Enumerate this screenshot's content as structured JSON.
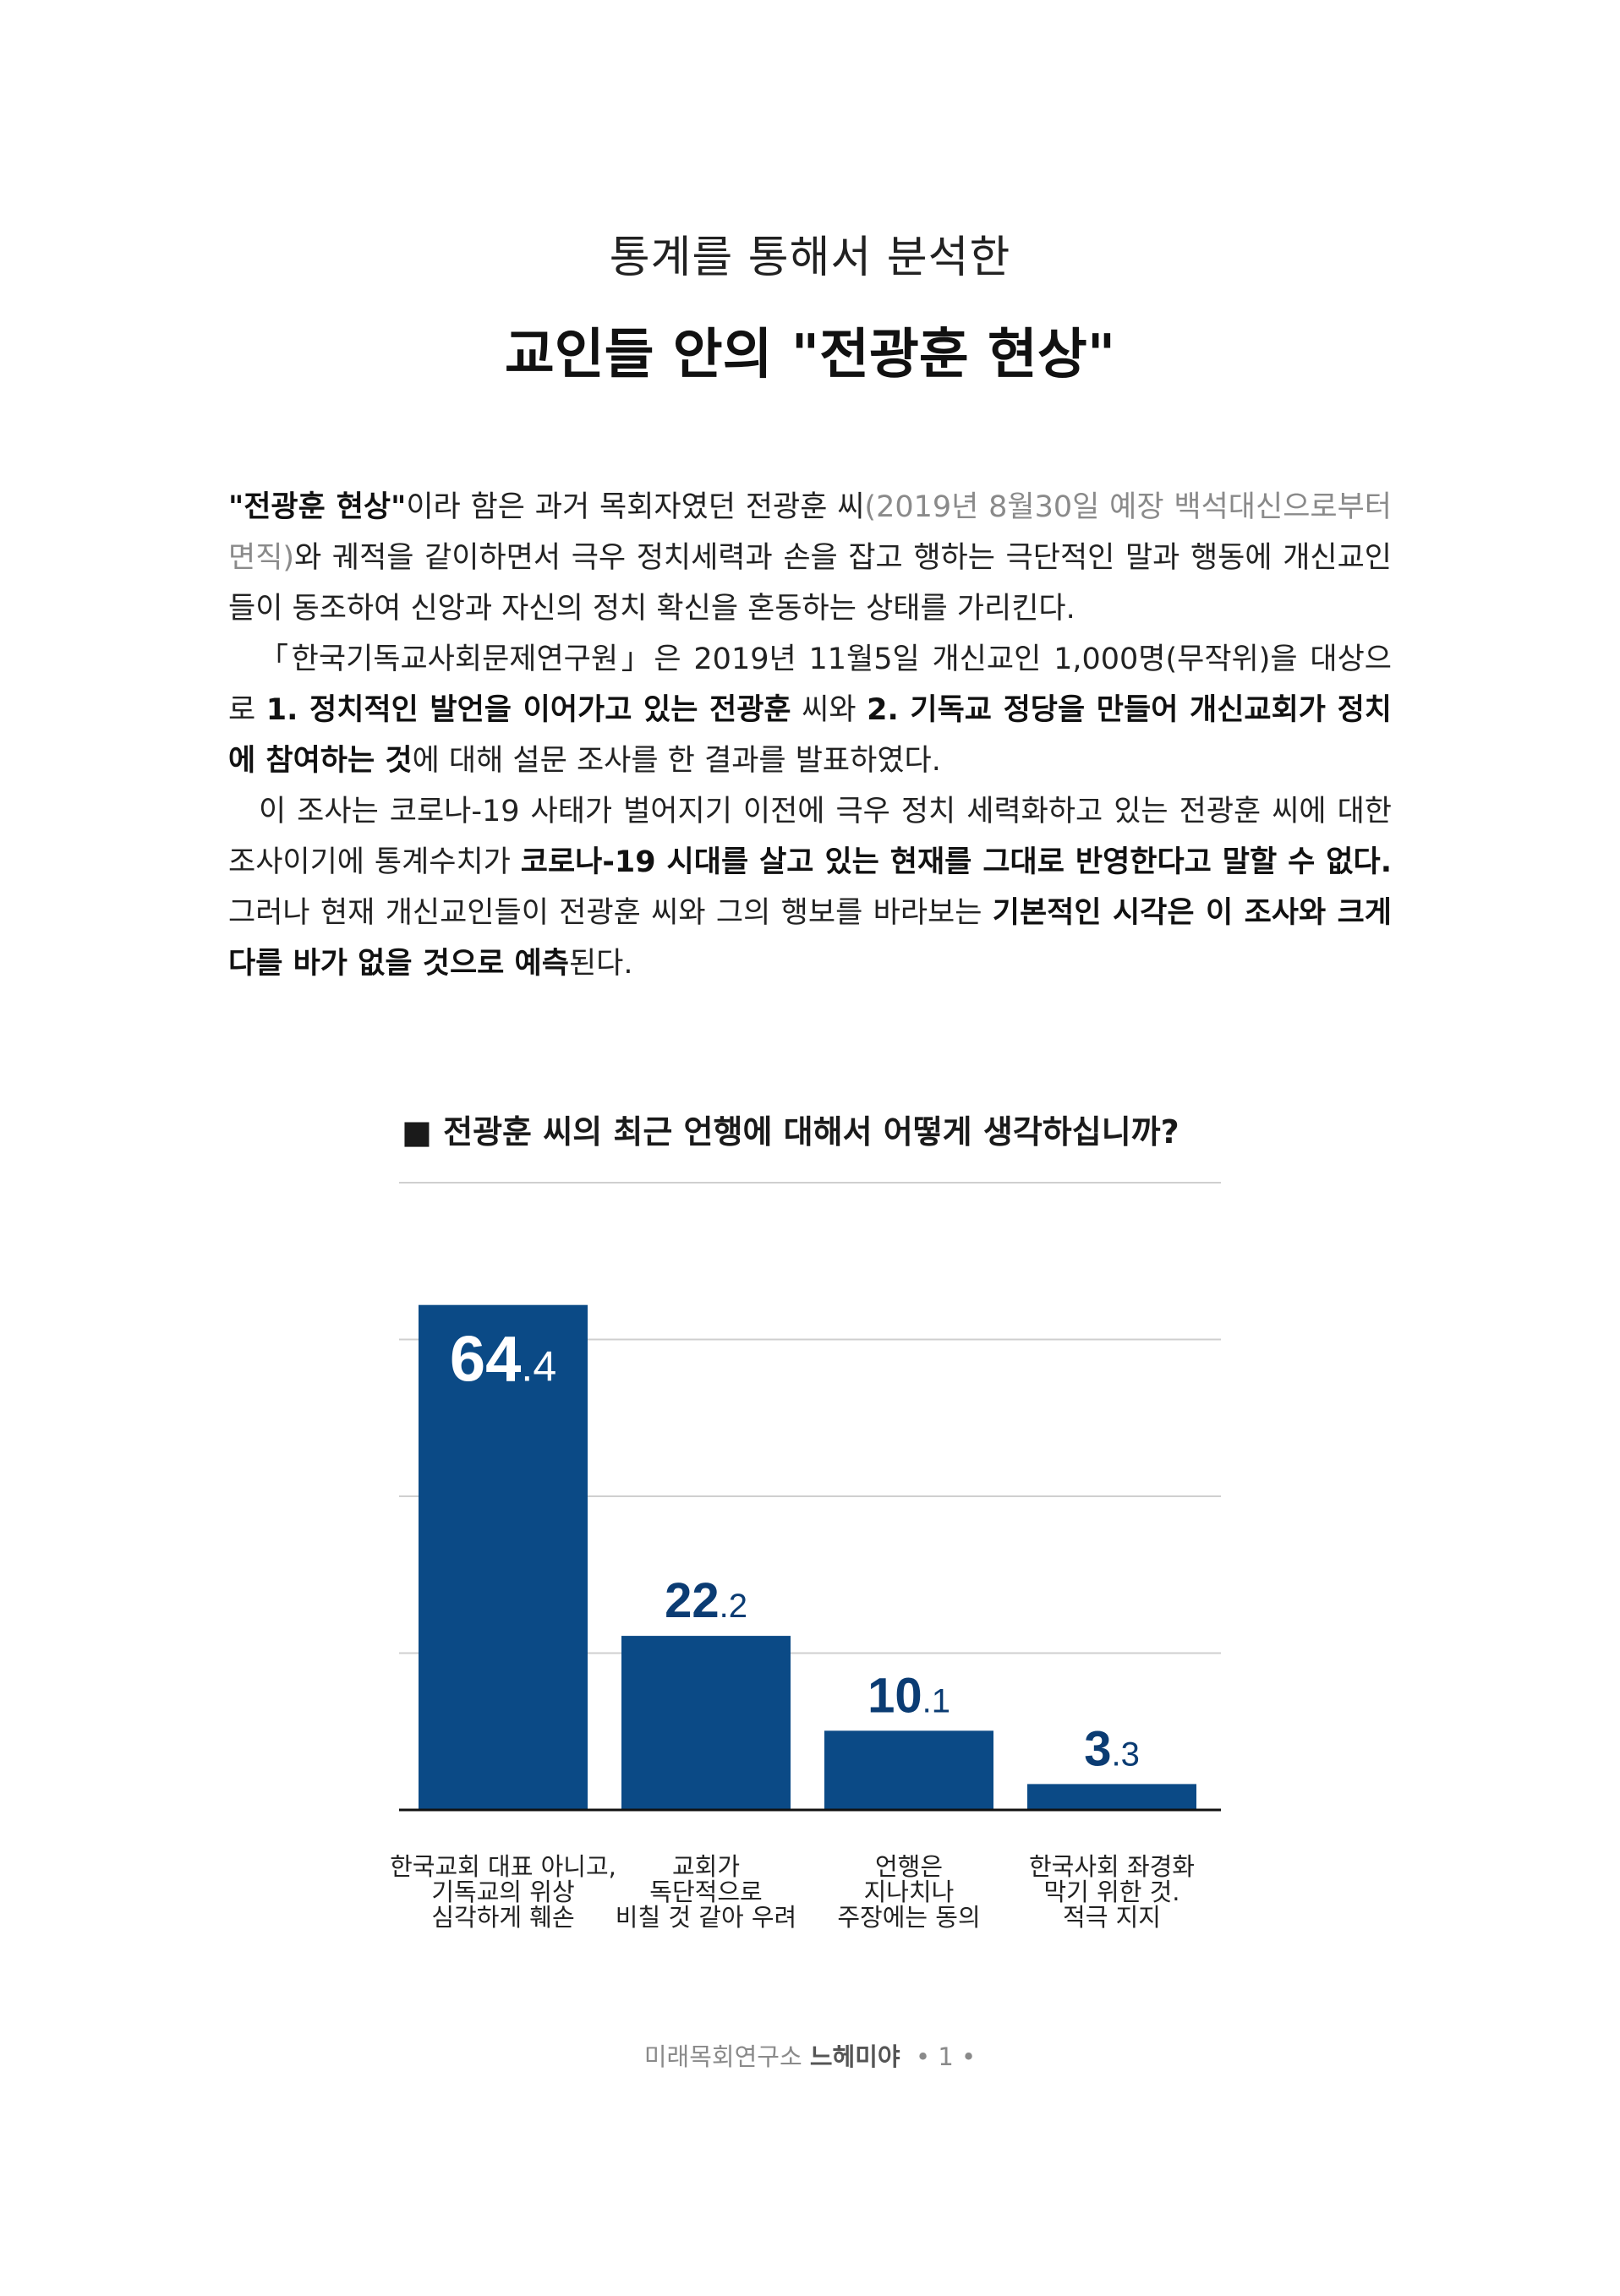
{
  "header": {
    "subtitle": "통계를 통해서 분석한",
    "title": "교인들 안의 \"전광훈 현상\""
  },
  "body": {
    "p1": {
      "b1": "\"전광훈 현상\"",
      "t1": "이라 함은 과거 목회자였던 전광훈 씨",
      "muted": "(2019년 8월30일 예장 백석대신으로부터 면직)",
      "t2": "와 궤적을 같이하면서 극우 정치세력과 손을 잡고 행하는 극단적인 말과 행동에 개신교인들이 동조하여 신앙과 자신의 정치 확신을 혼동하는 상태를 가리킨다."
    },
    "p2": {
      "t1": "「한국기독교사회문제연구원」은 2019년 11월5일 개신교인 1,000명(무작위)을 대상으로 ",
      "b1": "1. 정치적인 발언을 이어가고 있는 전광훈",
      "t2": " 씨와 ",
      "b2": "2. 기독교 정당을 만들어 개신교회가 정치에 참여하는 것",
      "t3": "에 대해 설문 조사를 한 결과를 발표하였다."
    },
    "p3": {
      "t1": "이 조사는 코로나-19 사태가 벌어지기 이전에 극우 정치 세력화하고 있는 전광훈 씨에 대한 조사이기에 통계수치가 ",
      "b1": "코로나-19 시대를 살고 있는 현재를 그대로 반영한다고 말할 수 없다.",
      "t2": " 그러나 현재 개신교인들이 전광훈 씨와 그의 행보를 바라보는 ",
      "b2": "기본적인 시각은 이 조사와 크게 다를 바가 없을 것으로 예측",
      "t3": "된다."
    }
  },
  "chart_data": {
    "type": "bar",
    "title": "■ 전광훈 씨의 최근 언행에 대해서 어떻게 생각하십니까?",
    "categories": [
      [
        "한국교회 대표 아니고,",
        "기독교의 위상",
        "심각하게 훼손"
      ],
      [
        "교회가",
        "독단적으로",
        "비칠 것 같아 우려"
      ],
      [
        "언행은",
        "지나치나",
        "주장에는 동의"
      ],
      [
        "한국사회 좌경화",
        "막기 위한 것.",
        "적극 지지"
      ]
    ],
    "values": [
      64.4,
      22.2,
      10.1,
      3.3
    ],
    "labels": [
      {
        "int": "64",
        "dec": ".4"
      },
      {
        "int": "22",
        "dec": ".2"
      },
      {
        "int": "10",
        "dec": ".1"
      },
      {
        "int": "3",
        "dec": ".3"
      }
    ],
    "ylim": [
      0,
      80
    ],
    "grid": true,
    "bar_color": "#0b4a86",
    "label_inside_color": "#ffffff",
    "label_outside_color": "#0b3c73"
  },
  "footer": {
    "org": "미래목회연구소",
    "brand": "느헤미야",
    "page": "• 1 •"
  }
}
